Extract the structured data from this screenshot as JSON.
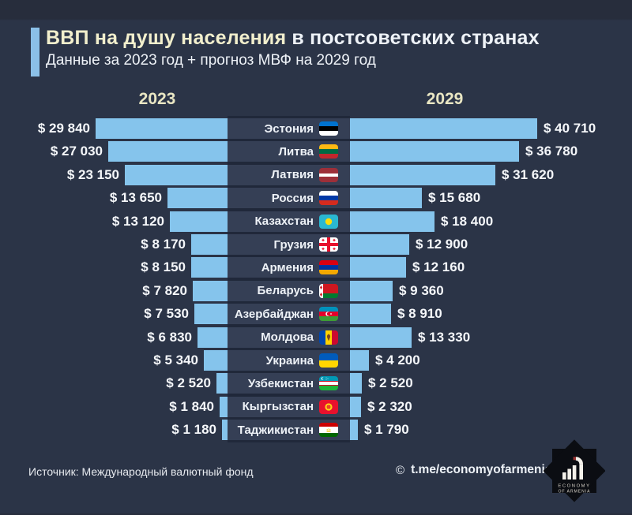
{
  "header": {
    "title_highlight": "ВВП на душу населения",
    "title_rest": " в постсоветских странах",
    "subtitle": "Данные за 2023 год + прогноз МВФ на 2029 год"
  },
  "chart_data": {
    "type": "bar",
    "orientation": "horizontal",
    "layout": "paired back-to-back bars with center category column",
    "title": "ВВП на душу населения в постсоветских странах",
    "subtitle": "Данные за 2023 год + прогноз МВФ на 2029 год",
    "column_headers": [
      "2023",
      "2029"
    ],
    "value_prefix": "$",
    "bar_color": "#85c4ec",
    "categories": [
      "Эстония",
      "Литва",
      "Латвия",
      "Россия",
      "Казахстан",
      "Грузия",
      "Армения",
      "Беларусь",
      "Азербайджан",
      "Молдова",
      "Украина",
      "Узбекистан",
      "Кыргызстан",
      "Таджикистан"
    ],
    "flags": [
      "flag-estonia",
      "flag-lithuania",
      "flag-latvia",
      "flag-russia",
      "flag-kazakhstan",
      "flag-georgia",
      "flag-armenia",
      "flag-belarus",
      "flag-azerbaijan",
      "flag-moldova",
      "flag-ukraine",
      "flag-uzbekistan",
      "flag-kyrgyzstan",
      "flag-tajikistan"
    ],
    "series": [
      {
        "name": "2023",
        "side": "left",
        "values": [
          29840,
          27030,
          23150,
          13650,
          13120,
          8170,
          8150,
          7820,
          7530,
          6830,
          5340,
          2520,
          1840,
          1180
        ],
        "labels": [
          "$ 29 840",
          "$ 27 030",
          "$ 23 150",
          "$ 13 650",
          "$ 13 120",
          "$ 8 170",
          "$ 8 150",
          "$ 7 820",
          "$ 7 530",
          "$ 6 830",
          "$ 5 340",
          "$ 2 520",
          "$ 1 840",
          "$ 1 180"
        ]
      },
      {
        "name": "2029",
        "side": "right",
        "values": [
          40710,
          36780,
          31620,
          15680,
          18400,
          12900,
          12160,
          9360,
          8910,
          13330,
          4200,
          2520,
          2320,
          1790
        ],
        "labels": [
          "$ 40 710",
          "$ 36 780",
          "$ 31 620",
          "$ 15 680",
          "$ 18 400",
          "$ 12 900",
          "$ 12 160",
          "$ 9 360",
          "$ 8 910",
          "$ 13 330",
          "$ 4 200",
          "$ 2 520",
          "$ 2 320",
          "$ 1 790"
        ]
      }
    ]
  },
  "footer": {
    "source": "Источник: Международный валютный фонд",
    "copyright_symbol": "©",
    "telegram": "t.me/economyofarmenia",
    "logo_line1": "ECONOMY",
    "logo_line2": "OF ARMENIA"
  },
  "colors": {
    "background": "#2b3447",
    "bar": "#85c4ec",
    "accent_bar": "#8bc0e8",
    "title_highlight": "#f2efcd",
    "title_rest": "#eef2f7",
    "year_header": "#e9e6c3",
    "center_box": "#353f55",
    "center_backdrop": "#20283a"
  }
}
